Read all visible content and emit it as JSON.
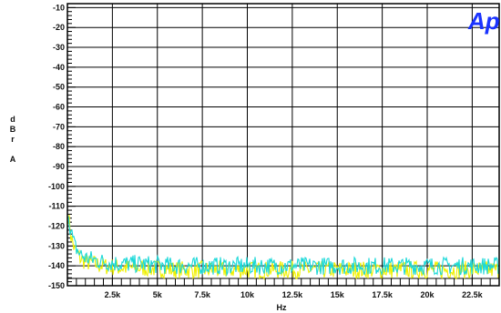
{
  "chart_data": {
    "type": "line",
    "title": "",
    "xlabel": "Hz",
    "ylabel": [
      "d",
      "B",
      "r",
      "",
      "A"
    ],
    "xlim": [
      0,
      24000
    ],
    "ylim": [
      -150,
      -8
    ],
    "x_ticks": [
      2500,
      5000,
      7500,
      10000,
      12500,
      15000,
      17500,
      20000,
      22500
    ],
    "x_tick_labels": [
      "2.5k",
      "5k",
      "7.5k",
      "10k",
      "12.5k",
      "15k",
      "17.5k",
      "20k",
      "22.5k"
    ],
    "y_ticks": [
      -10,
      -20,
      -30,
      -40,
      -50,
      -60,
      -70,
      -80,
      -90,
      -100,
      -110,
      -120,
      -130,
      -140,
      -150
    ],
    "y_tick_labels": [
      "-10",
      "-20",
      "-30",
      "-40",
      "-50",
      "-60",
      "-70",
      "-80",
      "-90",
      "-100",
      "-110",
      "-120",
      "-130",
      "-140",
      "-150"
    ],
    "grid": true,
    "series": [
      {
        "color": "#f0f000",
        "x": [
          20,
          100,
          200,
          400,
          700,
          1000,
          1500,
          2000,
          3000,
          4000,
          6000,
          8000,
          10000,
          12000,
          14000,
          16000,
          18000,
          20000,
          22000,
          24000
        ],
        "y": [
          -112,
          -118,
          -125,
          -132,
          -136,
          -138,
          -139,
          -140,
          -141,
          -141,
          -142,
          -142,
          -142,
          -142,
          -142,
          -142,
          -142,
          -142,
          -142,
          -142
        ]
      },
      {
        "color": "#18d8d8",
        "x": [
          20,
          100,
          200,
          400,
          700,
          1000,
          1500,
          2000,
          3000,
          4000,
          6000,
          8000,
          10000,
          12000,
          14000,
          16000,
          18000,
          20000,
          22000,
          24000
        ],
        "y": [
          -110,
          -117,
          -123,
          -130,
          -134,
          -136,
          -137,
          -138,
          -139,
          -139,
          -140,
          -140,
          -140,
          -140,
          -140,
          -140,
          -140,
          -140,
          -140,
          -140
        ]
      }
    ],
    "logo_text": "Ap",
    "logo_color": "#1a33ff"
  }
}
